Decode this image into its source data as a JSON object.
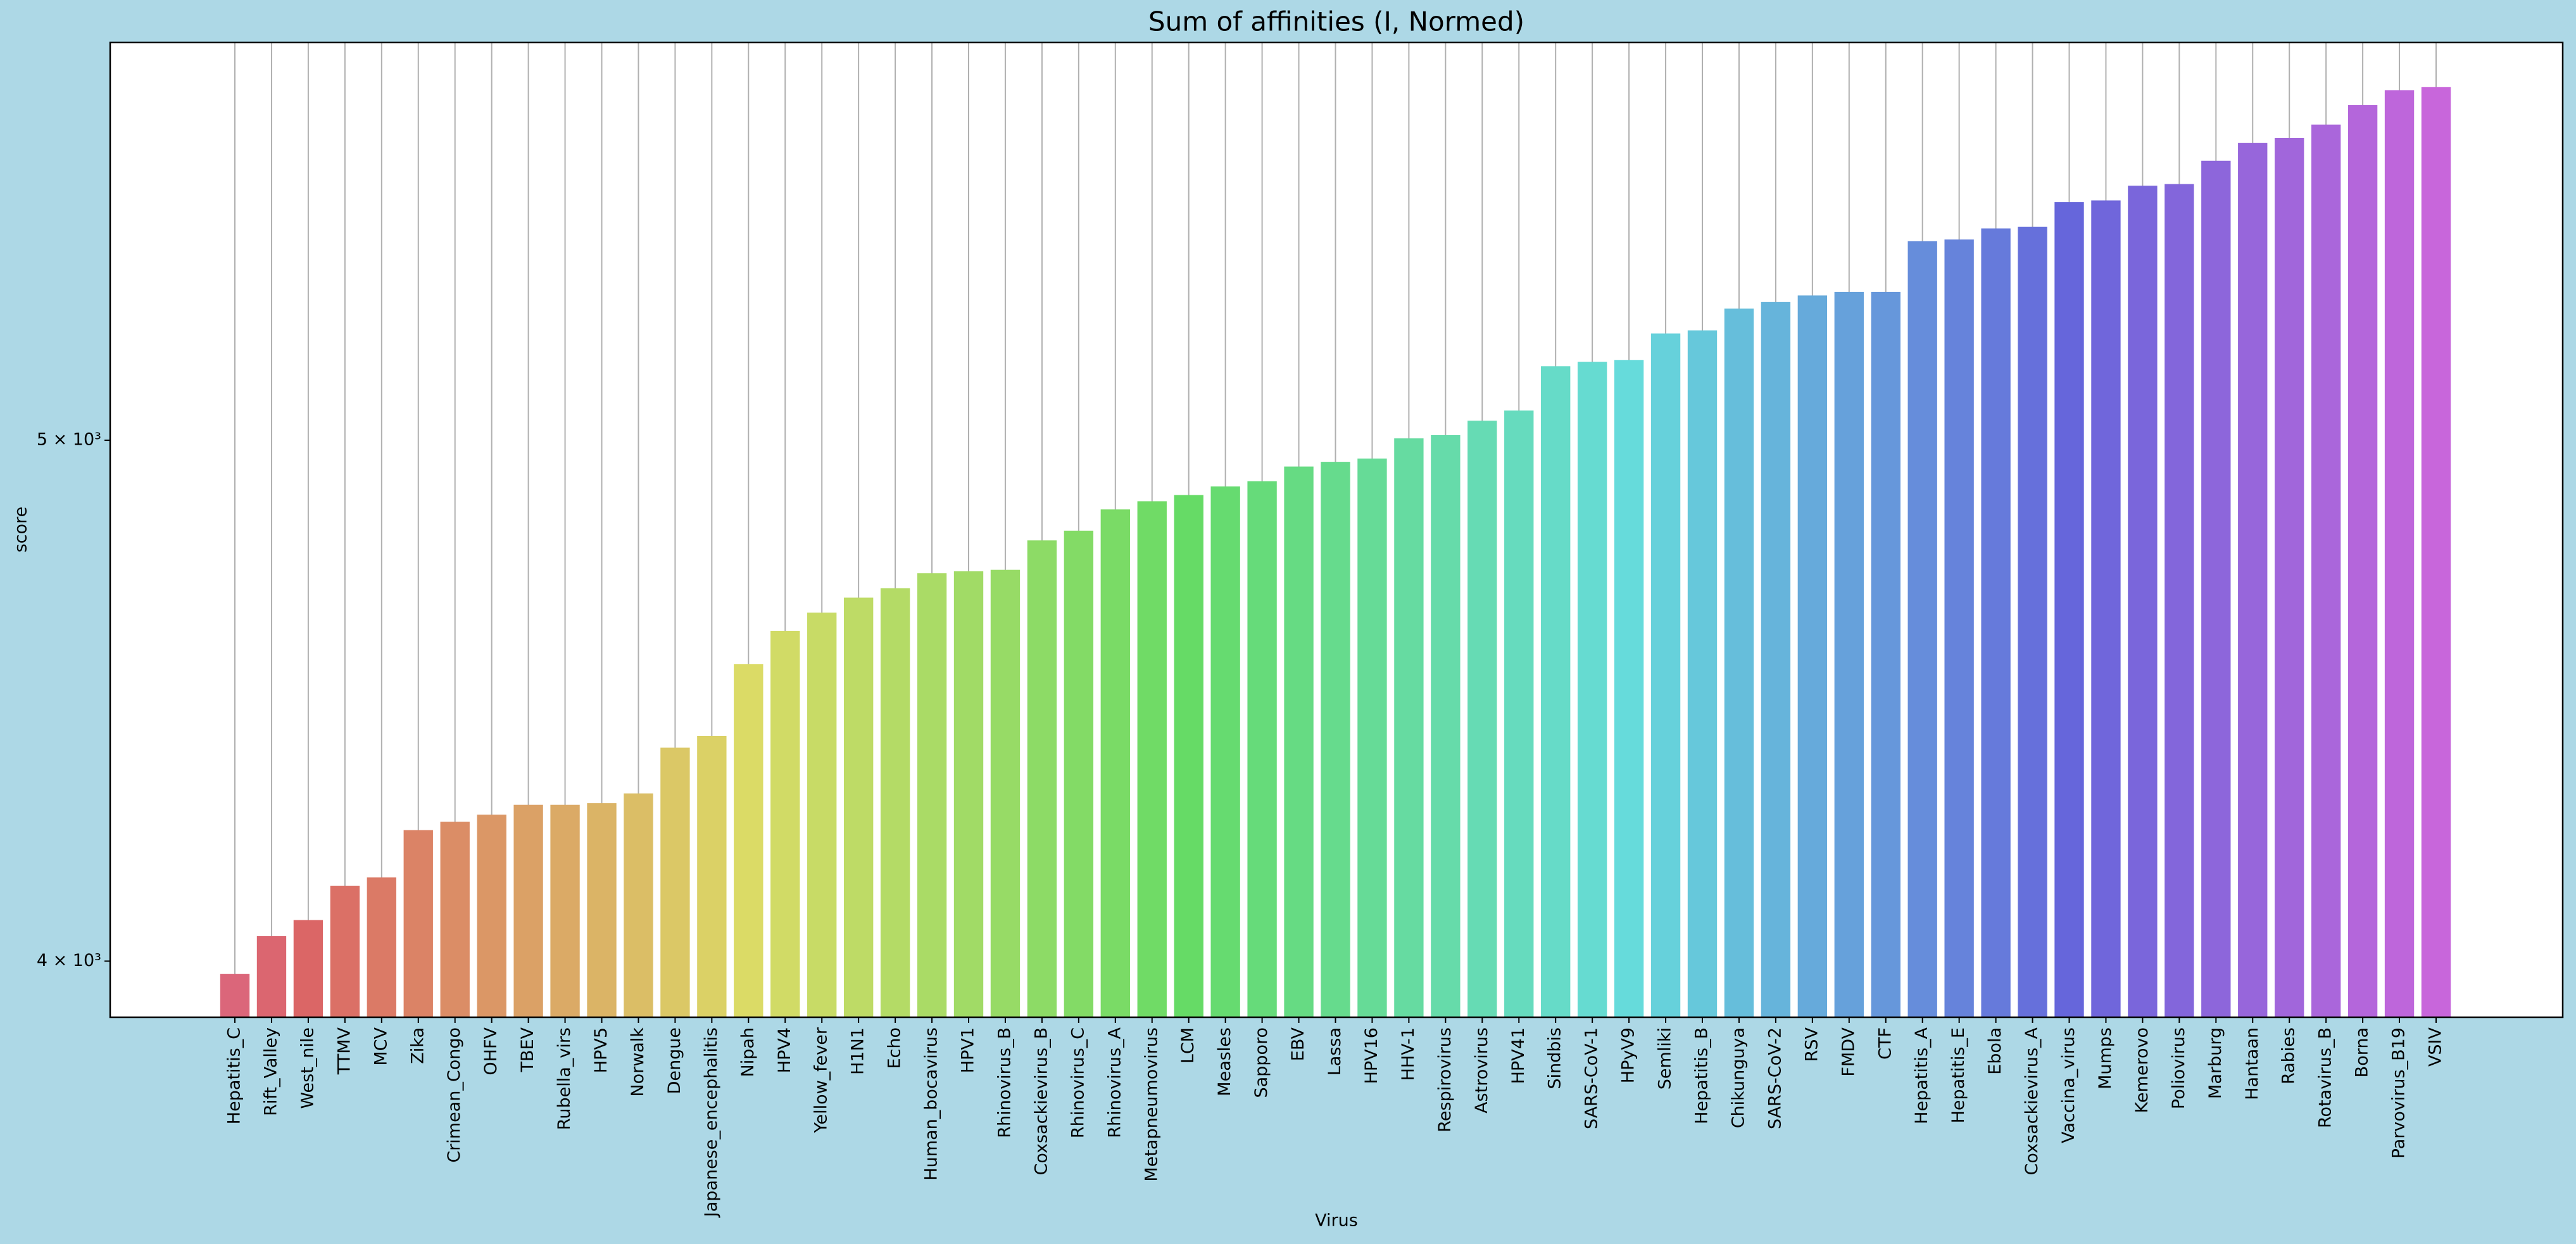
{
  "chart_data": {
    "type": "bar",
    "title": "Sum of affinities (I, Normed)",
    "x_label": "Virus",
    "y_label": "score",
    "y_scale": "log",
    "x_grid": true,
    "palette": "husl",
    "categories": [
      "Hepatitis_C",
      "Rift_Valley",
      "West_nile",
      "TTMV",
      "MCV",
      "Zika",
      "Crimean_Congo",
      "OHFV",
      "TBEV",
      "Rubella_virs",
      "HPV5",
      "Norwalk",
      "Dengue",
      "Japanese_encephalitis",
      "Nipah",
      "HPV4",
      "Yellow_fever",
      "H1N1",
      "Echo",
      "Human_bocavirus",
      "HPV1",
      "Rhinovirus_B",
      "Coxsackievirus_B",
      "Rhinovirus_C",
      "Rhinovirus_A",
      "Metapneumovirus",
      "LCM",
      "Measles",
      "Sapporo",
      "EBV",
      "Lassa",
      "HPV16",
      "HHV-1",
      "Respirovirus",
      "Astrovirus",
      "HPV41",
      "Sindbis",
      "SARS-CoV-1",
      "HPyV9",
      "Semliki",
      "Hepatitis_B",
      "Chikunguya",
      "SARS-CoV-2",
      "RSV",
      "FMDV",
      "CTF",
      "Hepatitis_A",
      "Hepatitis_E",
      "Ebola",
      "Coxsackievirus_A",
      "Vaccina_virus",
      "Mumps",
      "Kemerovo",
      "Poliovirus",
      "Marburg",
      "Hantaan",
      "Rabies",
      "Rotavirus_B",
      "Borna",
      "Parvovirus_B19",
      "VSIV"
    ],
    "values": [
      3978,
      4043,
      4071,
      4131,
      4146,
      4231,
      4246,
      4259,
      4277,
      4277,
      4280,
      4298,
      4383,
      4405,
      4543,
      4608,
      4644,
      4674,
      4693,
      4723,
      4727,
      4730,
      4790,
      4810,
      4854,
      4871,
      4884,
      4902,
      4913,
      4944,
      4954,
      4961,
      5004,
      5011,
      5042,
      5064,
      5161,
      5171,
      5175,
      5234,
      5241,
      5290,
      5305,
      5320,
      5328,
      5328,
      5445,
      5449,
      5475,
      5479,
      5537,
      5541,
      5576,
      5580,
      5636,
      5679,
      5691,
      5724,
      5772,
      5809,
      5817
    ],
    "ylim": [
      3905,
      5929
    ],
    "yticks": [
      {
        "value": 4000,
        "label": "4 × 10³"
      },
      {
        "value": 5000,
        "label": "5 × 10³"
      }
    ]
  }
}
